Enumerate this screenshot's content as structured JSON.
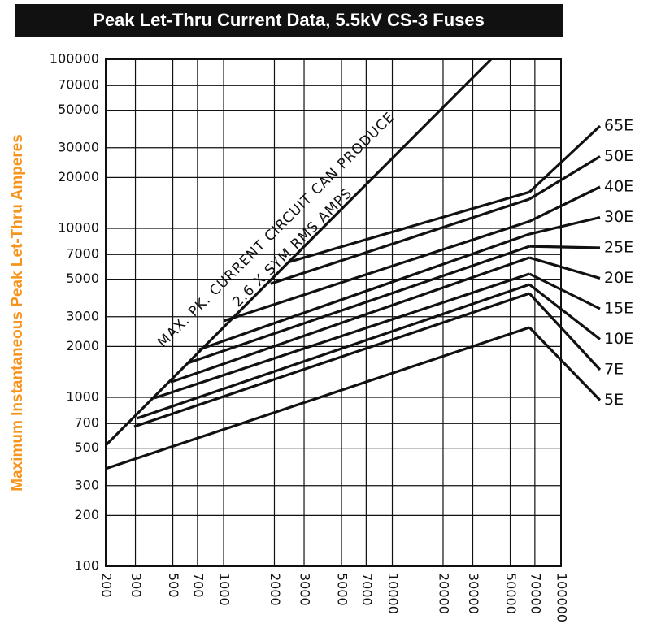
{
  "chart_data": {
    "type": "line",
    "title": "Peak Let-Thru Current Data,  5.5kV  CS-3 Fuses",
    "y_label": "Maximum Instantaneous Peak Let-Thru Amperes",
    "annotations": [
      "MAX. PK. CURRENT CIRCUIT CAN PRODUCE",
      "2.6 X SYM RMS AMPS"
    ],
    "log_x": true,
    "log_y": true,
    "grid": true,
    "xlim": [
      200,
      100000
    ],
    "ylim": [
      100,
      100000
    ],
    "xticks": [
      200,
      300,
      500,
      700,
      1000,
      2000,
      3000,
      5000,
      7000,
      10000,
      20000,
      30000,
      50000,
      70000,
      100000
    ],
    "yticks": [
      100,
      200,
      300,
      500,
      700,
      1000,
      2000,
      3000,
      5000,
      7000,
      10000,
      20000,
      30000,
      50000,
      70000,
      100000
    ],
    "max_line": {
      "x": [
        200,
        38462
      ],
      "values": [
        520,
        100000
      ]
    },
    "series": [
      {
        "name": "65E",
        "color": "#111111",
        "x": [
          2427,
          65000
        ],
        "values": [
          6310,
          16400
        ]
      },
      {
        "name": "50E",
        "color": "#111111",
        "x": [
          1900,
          65000
        ],
        "values": [
          4700,
          14900
        ]
      },
      {
        "name": "40E",
        "color": "#111111",
        "x": [
          1000,
          65000
        ],
        "values": [
          2830,
          11000
        ]
      },
      {
        "name": "30E",
        "color": "#111111",
        "x": [
          716,
          65000
        ],
        "values": [
          1920,
          9250
        ]
      },
      {
        "name": "25E",
        "color": "#111111",
        "x": [
          607,
          65000
        ],
        "values": [
          1590,
          7830
        ]
      },
      {
        "name": "20E",
        "color": "#111111",
        "x": [
          486,
          65000
        ],
        "values": [
          1230,
          6710
        ]
      },
      {
        "name": "15E",
        "color": "#111111",
        "x": [
          389,
          65000
        ],
        "values": [
          990,
          5380
        ]
      },
      {
        "name": "10E",
        "color": "#111111",
        "x": [
          305,
          65000
        ],
        "values": [
          750,
          4650
        ]
      },
      {
        "name": "7E",
        "color": "#111111",
        "x": [
          295,
          65000
        ],
        "values": [
          671,
          4120
        ]
      },
      {
        "name": "5E",
        "color": "#111111",
        "x": [
          200,
          65000
        ],
        "values": [
          378,
          2590
        ]
      }
    ]
  }
}
